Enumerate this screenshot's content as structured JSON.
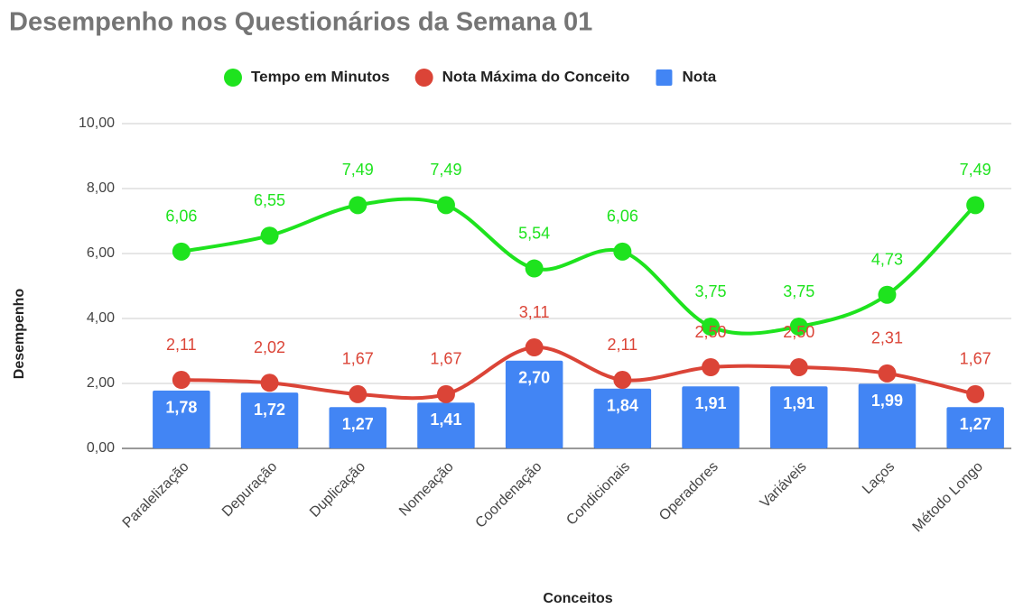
{
  "chart_data": {
    "type": "combo",
    "title": "Desempenho nos Questionários da Semana 01",
    "x_label": "Conceitos",
    "y_label": "Desempenho",
    "categories": [
      "Paralelização",
      "Depuração",
      "Duplicação",
      "Nomeação",
      "Coordenação",
      "Condicionais",
      "Operadores",
      "Variáveis",
      "Laços",
      "Método Longo"
    ],
    "series": [
      {
        "name": "Tempo em Minutos",
        "type": "line",
        "color": "#1ee31e",
        "values": [
          6.06,
          6.55,
          7.49,
          7.49,
          5.54,
          6.06,
          3.75,
          3.75,
          4.73,
          7.49
        ],
        "value_labels": [
          "6,06",
          "6,55",
          "7,49",
          "7,49",
          "5,54",
          "6,06",
          "3,75",
          "3,75",
          "4,73",
          "7,49"
        ]
      },
      {
        "name": "Nota Máxima do Conceito",
        "type": "line",
        "color": "#db4437",
        "values": [
          2.11,
          2.02,
          1.67,
          1.67,
          3.11,
          2.11,
          2.5,
          2.5,
          2.31,
          1.67
        ],
        "value_labels": [
          "2,11",
          "2,02",
          "1,67",
          "1,67",
          "3,11",
          "2,11",
          "2,50",
          "2,50",
          "2,31",
          "1,67"
        ]
      },
      {
        "name": "Nota",
        "type": "bar",
        "color": "#4285f4",
        "values": [
          1.78,
          1.72,
          1.27,
          1.41,
          2.7,
          1.84,
          1.91,
          1.91,
          1.99,
          1.27
        ],
        "value_labels": [
          "1,78",
          "1,72",
          "1,27",
          "1,41",
          "2,70",
          "1,84",
          "1,91",
          "1,91",
          "1,99",
          "1,27"
        ]
      }
    ],
    "ylim": [
      0,
      10
    ],
    "yticks": [
      {
        "value": 0,
        "label": "0,00"
      },
      {
        "value": 2,
        "label": "2,00"
      },
      {
        "value": 4,
        "label": "4,00"
      },
      {
        "value": 6,
        "label": "6,00"
      },
      {
        "value": 8,
        "label": "8,00"
      },
      {
        "value": 10,
        "label": "10,00"
      }
    ],
    "grid": true,
    "legend": "top"
  }
}
